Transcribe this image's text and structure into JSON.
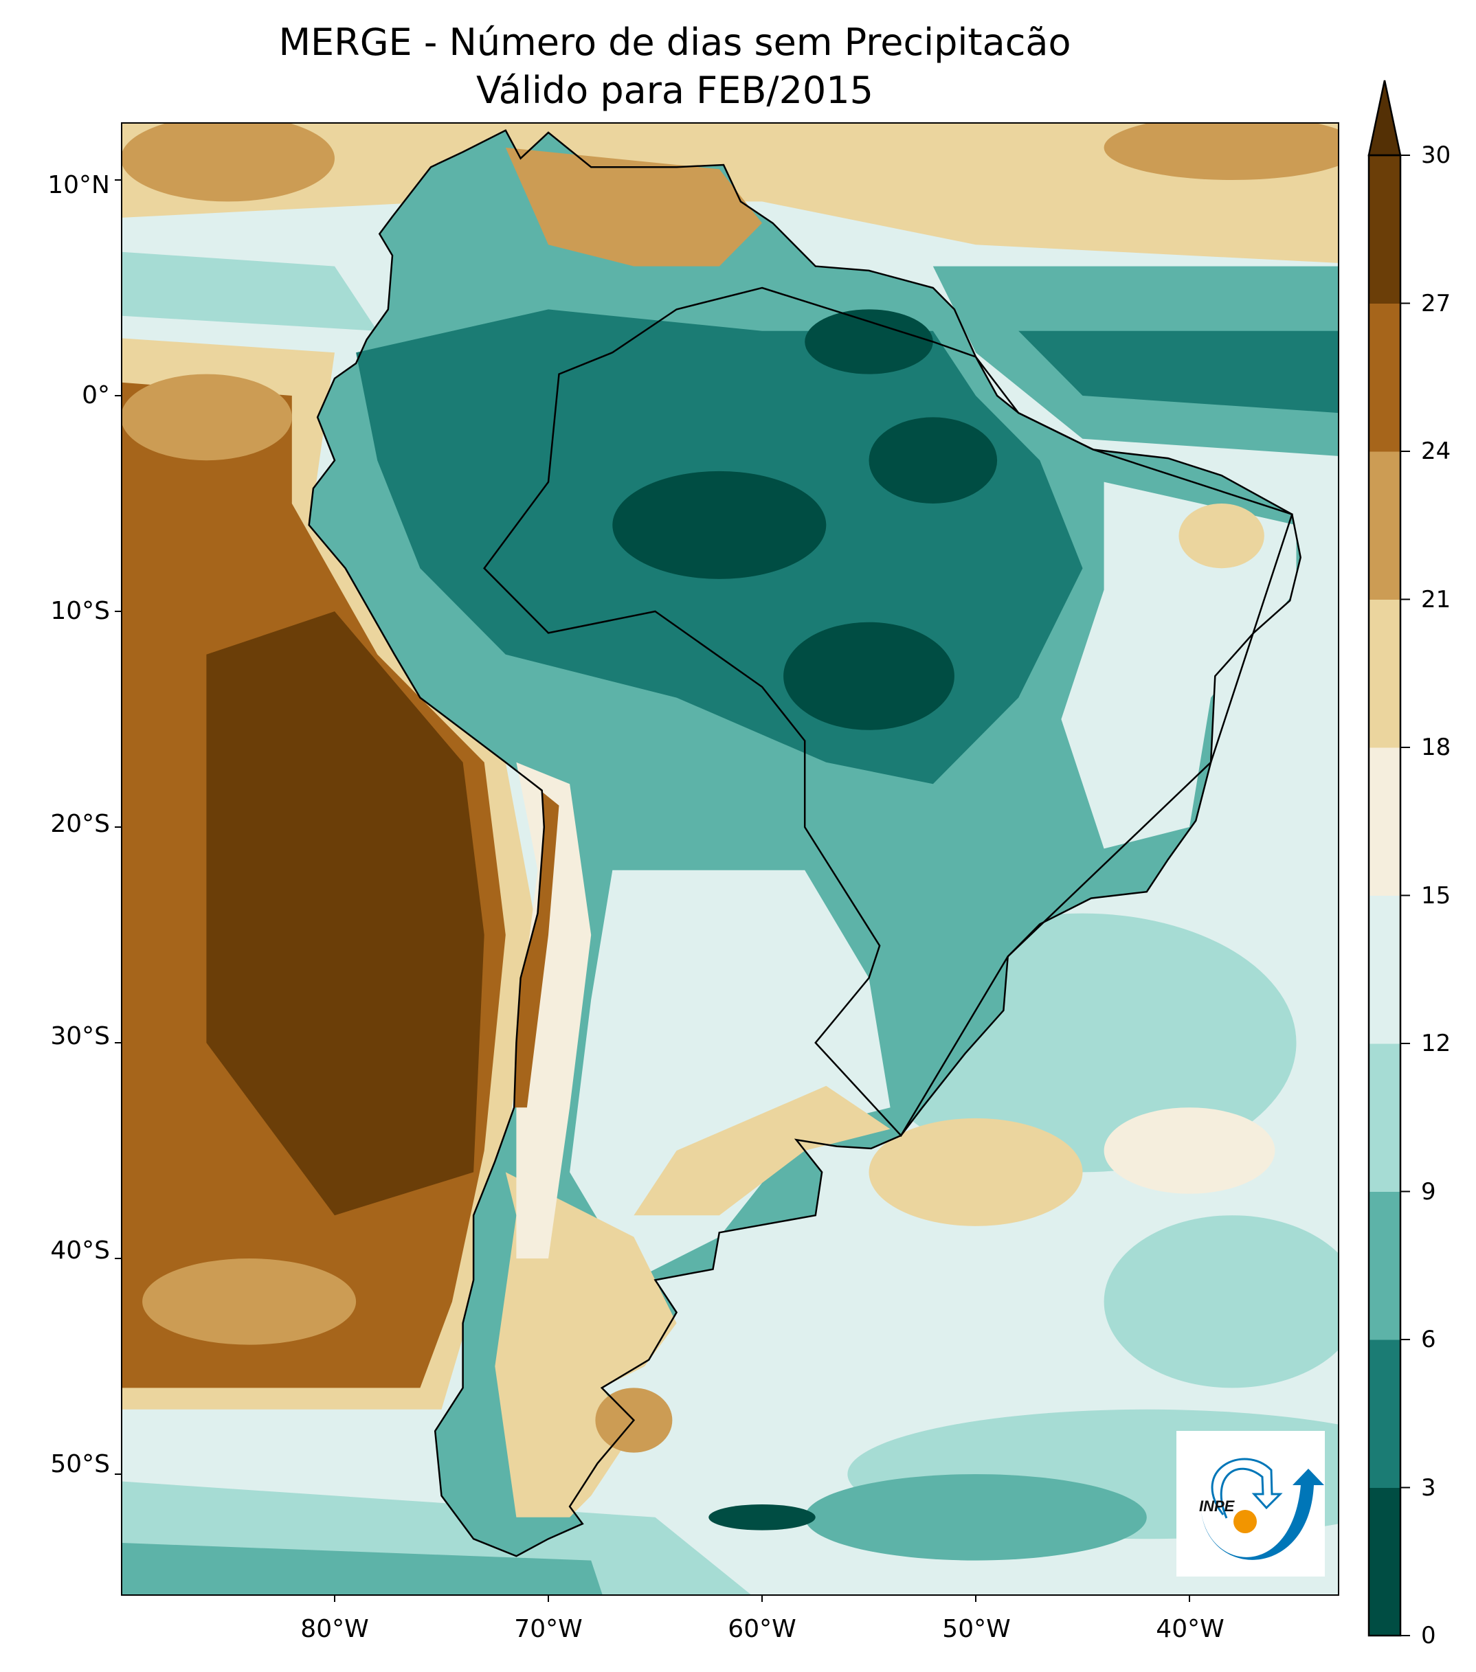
{
  "title": {
    "line1": "MERGE - Número de dias sem Precipitacão",
    "line2": "Válido para FEB/2015"
  },
  "axes": {
    "lat_ticks": [
      "10°N",
      "0°",
      "10°S",
      "20°S",
      "30°S",
      "40°S",
      "50°S"
    ],
    "lon_ticks": [
      "80°W",
      "70°W",
      "60°W",
      "50°W",
      "40°W"
    ]
  },
  "colorbar": {
    "ticks": [
      "0",
      "3",
      "6",
      "9",
      "12",
      "15",
      "18",
      "21",
      "24",
      "27",
      "30"
    ],
    "colors": [
      "#004d43",
      "#1b7c74",
      "#5db3a8",
      "#a6dcd4",
      "#dff0ee",
      "#f5eedd",
      "#ebd59e",
      "#cc9c54",
      "#a6651b",
      "#6b3e08"
    ],
    "extend_color": "#543005"
  },
  "logo": {
    "text": "INPE",
    "blue": "#0076b8",
    "orange": "#f29500"
  },
  "chart_data": {
    "type": "heatmap",
    "title": "MERGE - Número de dias sem Precipitacão / Válido para FEB/2015",
    "variable": "Número de dias sem precipitação",
    "levels": [
      0,
      3,
      6,
      9,
      12,
      15,
      18,
      21,
      24,
      27,
      30
    ],
    "lon_range": [
      -90,
      -33
    ],
    "lat_range": [
      -55.6,
      12.6
    ],
    "summary": {
      "amazon_basin": "0-6",
      "central_brazil": "3-6",
      "northeast_brazil": "9-18",
      "pacific_off_peru_chile": "24-30+",
      "patagonia": "15-21",
      "caribbean": "18-27"
    }
  }
}
